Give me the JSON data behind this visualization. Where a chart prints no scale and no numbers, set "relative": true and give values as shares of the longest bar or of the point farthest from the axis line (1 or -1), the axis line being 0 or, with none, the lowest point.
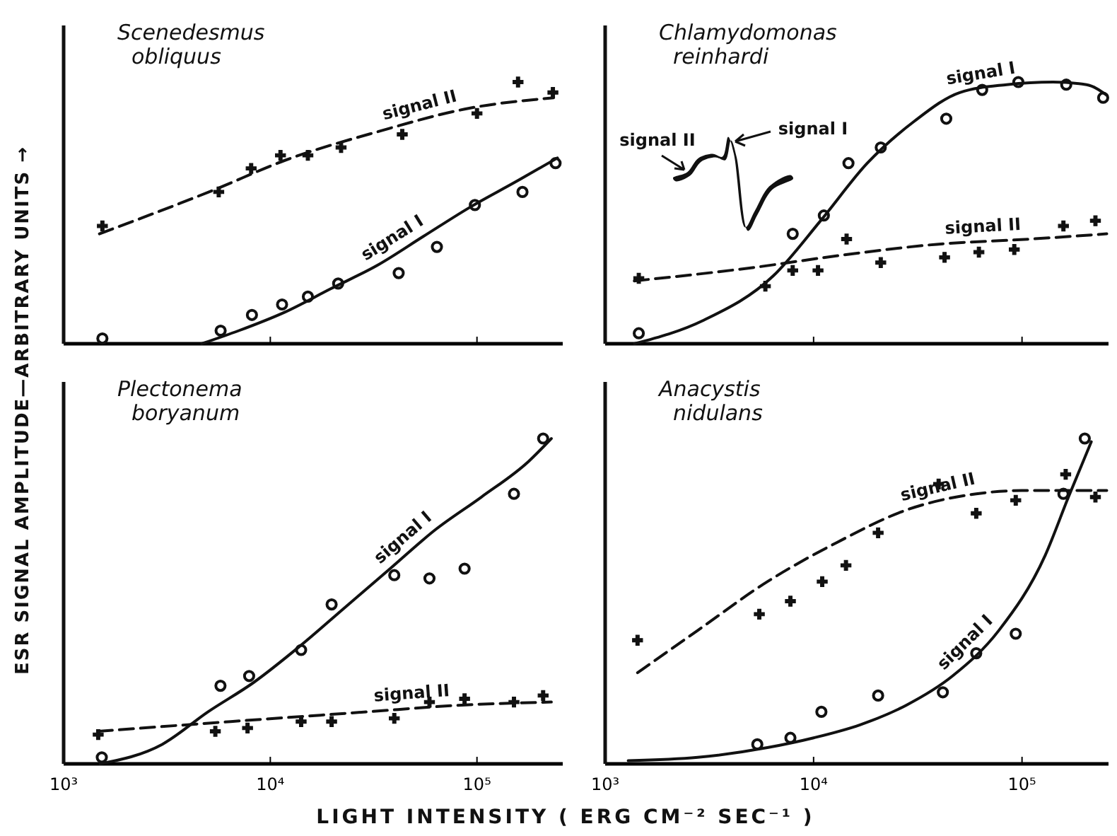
{
  "chart_data": [
    {
      "type": "scatter",
      "title": "Scenedesmus obliquus",
      "ylabel": "ESR SIGNAL AMPLITUDE—ARBITRARY UNITS →",
      "relative": true,
      "log": "x",
      "tick_labels": false,
      "xlim": [
        1000,
        260000
      ],
      "xticks": [
        {
          "value": 1000,
          "label": null
        },
        {
          "value": 10000,
          "label": null
        },
        {
          "value": 100000,
          "label": null
        }
      ],
      "series": [
        {
          "type": "scatter",
          "marker": "circle",
          "color": "#111111",
          "x": [
            1540,
            5750,
            8150,
            11400,
            15200,
            21300,
            41800,
            64000,
            97700,
            166000,
            240000
          ],
          "values": [
            0.02,
            0.05,
            0.11,
            0.15,
            0.18,
            0.23,
            0.27,
            0.37,
            0.53,
            0.58,
            0.69
          ]
        },
        {
          "type": "scatter",
          "marker": "cross",
          "color": "#111111",
          "x": [
            1540,
            5630,
            8080,
            11200,
            15200,
            22000,
            43500,
            100000,
            158000,
            233000
          ],
          "values": [
            0.45,
            0.58,
            0.67,
            0.72,
            0.72,
            0.75,
            0.8,
            0.88,
            1.0,
            0.96
          ]
        },
        {
          "type": "line",
          "name": "signal I",
          "line_style": "solid",
          "color": "#111111",
          "x": [
            4650,
            7040,
            11700,
            19600,
            33000,
            55000,
            91800,
            155000,
            245000
          ],
          "values": [
            0,
            0.05,
            0.12,
            0.21,
            0.3,
            0.41,
            0.52,
            0.62,
            0.71
          ]
        },
        {
          "type": "line",
          "name": "signal II",
          "line_style": "dashed",
          "color": "#111111",
          "x": [
            1490,
            5420,
            11700,
            33000,
            91800,
            235000
          ],
          "values": [
            0.42,
            0.59,
            0.7,
            0.81,
            0.9,
            0.94
          ]
        }
      ]
    },
    {
      "type": "scatter",
      "title": "Chlamydomonas reinhardi",
      "relative": true,
      "log": "x",
      "tick_labels": false,
      "xlim": [
        1000,
        260000
      ],
      "xticks": [
        {
          "value": 1000,
          "label": null
        },
        {
          "value": 10000,
          "label": null
        },
        {
          "value": 100000,
          "label": null
        }
      ],
      "annotations": [
        "signal II",
        "signal I"
      ],
      "series": [
        {
          "type": "scatter",
          "marker": "circle",
          "color": "#111111",
          "x": [
            1450,
            7940,
            11200,
            14700,
            21000,
            43300,
            64400,
            96000,
            163000,
            245000
          ],
          "values": [
            0.04,
            0.42,
            0.49,
            0.69,
            0.75,
            0.86,
            0.97,
            1.0,
            0.99,
            0.94
          ]
        },
        {
          "type": "scatter",
          "marker": "cross",
          "color": "#111111",
          "x": [
            1450,
            5870,
            7940,
            10500,
            14400,
            21000,
            42500,
            62100,
            91800,
            158000,
            225000
          ],
          "values": [
            0.25,
            0.22,
            0.28,
            0.28,
            0.4,
            0.31,
            0.33,
            0.35,
            0.36,
            0.45,
            0.47
          ]
        },
        {
          "type": "line",
          "name": "signal I",
          "line_style": "solid",
          "color": "#111111",
          "x": [
            1380,
            2970,
            6420,
            10800,
            18100,
            30400,
            50300,
            84400,
            141000,
            204000,
            255000
          ],
          "values": [
            0,
            0.09,
            0.26,
            0.47,
            0.69,
            0.85,
            0.96,
            0.99,
            1.0,
            0.99,
            0.95
          ]
        },
        {
          "type": "line",
          "name": "signal II",
          "line_style": "dashed",
          "color": "#111111",
          "x": [
            1380,
            5000,
            14100,
            39000,
            110000,
            255000
          ],
          "values": [
            0.24,
            0.29,
            0.34,
            0.38,
            0.4,
            0.42
          ]
        }
      ]
    },
    {
      "type": "scatter",
      "title": "Plectonema boryanum",
      "xlabel": "LIGHT INTENSITY  ( ERG  CM⁻²  SEC⁻¹ )",
      "relative": true,
      "log": "x",
      "tick_labels": "x",
      "xlim": [
        1000,
        260000
      ],
      "xticks": [
        {
          "value": 1000,
          "label": "10³"
        },
        {
          "value": 10000,
          "label": "10⁴"
        },
        {
          "value": 100000,
          "label": "10⁵"
        }
      ],
      "series": [
        {
          "type": "scatter",
          "marker": "circle",
          "color": "#111111",
          "x": [
            1530,
            5740,
            7900,
            14100,
            19800,
            39800,
            58900,
            87100,
            151000,
            209000
          ],
          "values": [
            0.02,
            0.24,
            0.27,
            0.35,
            0.49,
            0.58,
            0.57,
            0.6,
            0.83,
            1.0
          ]
        },
        {
          "type": "scatter",
          "marker": "cross",
          "color": "#111111",
          "x": [
            1470,
            5420,
            7760,
            14100,
            19800,
            39800,
            58900,
            87100,
            151000,
            209000
          ],
          "values": [
            0.09,
            0.1,
            0.11,
            0.13,
            0.13,
            0.14,
            0.19,
            0.2,
            0.19,
            0.21
          ]
        },
        {
          "type": "line",
          "name": "signal I",
          "line_style": "solid",
          "color": "#111111",
          "x": [
            1500,
            3000,
            5000,
            8300,
            13800,
            22900,
            38000,
            63000,
            105000,
            178000,
            229000
          ],
          "values": [
            0,
            0.06,
            0.16,
            0.25,
            0.36,
            0.48,
            0.6,
            0.72,
            0.82,
            0.93,
            1.0
          ]
        },
        {
          "type": "line",
          "name": "signal II",
          "line_style": "dashed",
          "color": "#111111",
          "x": [
            1470,
            6430,
            29500,
            81000,
            229000
          ],
          "values": [
            0.1,
            0.13,
            0.16,
            0.18,
            0.19
          ]
        }
      ]
    },
    {
      "type": "scatter",
      "title": "Anacystis nidulans",
      "relative": true,
      "log": "x",
      "tick_labels": "x",
      "xlim": [
        1000,
        260000
      ],
      "xticks": [
        {
          "value": 1000,
          "label": "10³"
        },
        {
          "value": 10000,
          "label": "10⁴"
        },
        {
          "value": 100000,
          "label": "10⁵"
        }
      ],
      "series": [
        {
          "type": "scatter",
          "marker": "circle",
          "color": "#111111",
          "x": [
            5370,
            7740,
            10900,
            20400,
            41700,
            60300,
            93300,
            158000,
            200000
          ],
          "values": [
            0.06,
            0.08,
            0.16,
            0.21,
            0.22,
            0.34,
            0.4,
            0.83,
            1.0
          ]
        },
        {
          "type": "scatter",
          "marker": "cross",
          "color": "#111111",
          "x": [
            1430,
            5490,
            7740,
            11000,
            14300,
            20400,
            39800,
            60300,
            93300,
            162000,
            225000
          ],
          "values": [
            0.38,
            0.46,
            0.5,
            0.56,
            0.61,
            0.71,
            0.86,
            0.77,
            0.81,
            0.89,
            0.82
          ]
        },
        {
          "type": "line",
          "name": "signal I",
          "line_style": "solid",
          "color": "#111111",
          "x": [
            1290,
            2780,
            6000,
            10000,
            16700,
            27800,
            46400,
            77400,
            129000,
            167000,
            215000
          ],
          "values": [
            0.01,
            0.02,
            0.05,
            0.08,
            0.12,
            0.18,
            0.27,
            0.41,
            0.64,
            0.82,
            0.99
          ]
        },
        {
          "type": "line",
          "name": "signal II",
          "line_style": "dashed",
          "color": "#111111",
          "x": [
            1430,
            2780,
            6000,
            12900,
            27800,
            60300,
            100000,
            255000
          ],
          "values": [
            0.28,
            0.41,
            0.56,
            0.68,
            0.78,
            0.83,
            0.84,
            0.84
          ]
        }
      ]
    }
  ]
}
